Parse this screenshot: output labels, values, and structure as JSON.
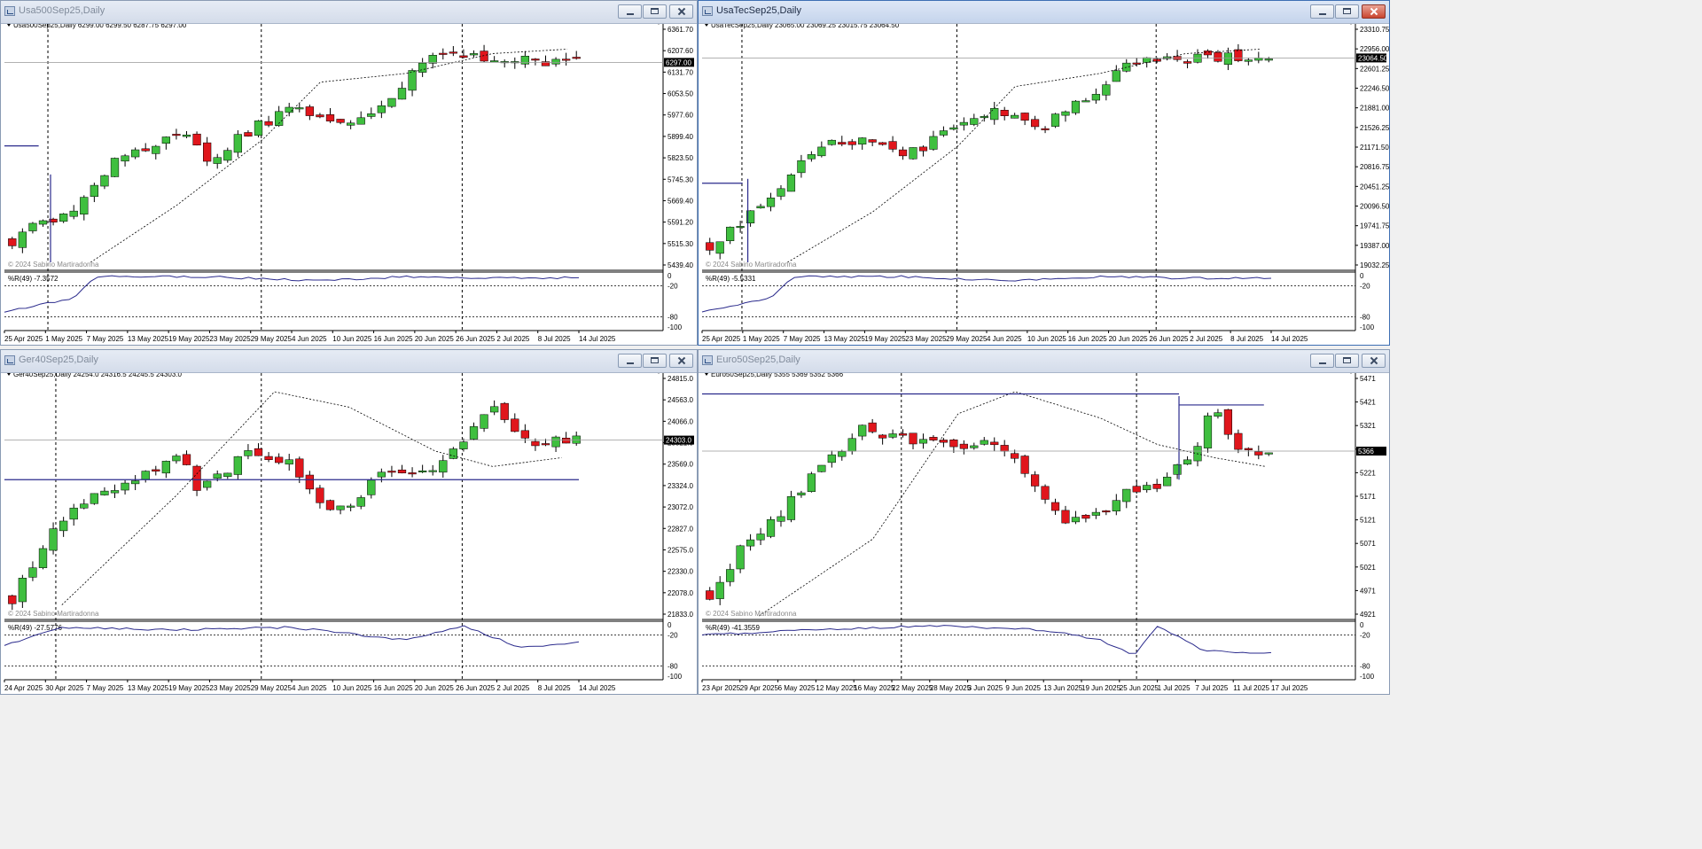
{
  "colors": {
    "bull": "#3fbf3f",
    "bear": "#e0161c",
    "wick": "#000000",
    "level": "#2a2a8c",
    "wpr": "#2a2a8c",
    "grid": "#000000",
    "tagBg": "#000000",
    "tagFg": "#ffffff"
  },
  "icons": {
    "window": "chart-window-icon",
    "min": "minimize-icon",
    "max": "maximize-icon",
    "close": "close-icon",
    "arrow": "dropdown-triangle-icon"
  },
  "watermark": "© 2024 Sabino Martiradonna",
  "windows": [
    {
      "title": "Usa500Sep25,Daily",
      "header": "Usa500Sep25,Daily  6299.00 6299.50 6287.75 6297.00",
      "price": "6297.00",
      "price_ticks": [
        "6361.70",
        "6207.60",
        "6131.70",
        "6053.50",
        "5977.60",
        "5899.40",
        "5823.50",
        "5745.30",
        "5669.40",
        "5591.20",
        "5515.30",
        "5439.40"
      ],
      "wpr_label": "%R(49) -7.3572",
      "wpr_ticks": [
        "0",
        "-20",
        "-80",
        "-100"
      ],
      "dates": [
        "25 Apr 2025",
        "1 May 2025",
        "7 May 2025",
        "13 May 2025",
        "19 May 2025",
        "23 May 2025",
        "29 May 2025",
        "4 Jun 2025",
        "10 Jun 2025",
        "16 Jun 2025",
        "20 Jun 2025",
        "26 Jun 2025",
        "2 Jul 2025",
        "8 Jul 2025",
        "14 Jul 2025"
      ]
    },
    {
      "title": "UsaTecSep25,Daily",
      "header": "UsaTecSep25,Daily  23065.00 23069.25 23015.75 23064.50",
      "price": "23064.50",
      "price_ticks": [
        "23310.75",
        "22956.00",
        "22601.25",
        "22246.50",
        "21881.00",
        "21526.25",
        "21171.50",
        "20816.75",
        "20451.25",
        "20096.50",
        "19741.75",
        "19387.00",
        "19032.25"
      ],
      "wpr_label": "%R(49) -5.5331",
      "wpr_ticks": [
        "0",
        "-20",
        "-80",
        "-100"
      ],
      "dates": [
        "25 Apr 2025",
        "1 May 2025",
        "7 May 2025",
        "13 May 2025",
        "19 May 2025",
        "23 May 2025",
        "29 May 2025",
        "4 Jun 2025",
        "10 Jun 2025",
        "16 Jun 2025",
        "20 Jun 2025",
        "26 Jun 2025",
        "2 Jul 2025",
        "8 Jul 2025",
        "14 Jul 2025"
      ]
    },
    {
      "title": "Ger40Sep25,Daily",
      "header": "Ger40Sep25,Daily  24254.0 24316.5 24245.5 24303.0",
      "price": "24303.0",
      "price_ticks": [
        "24815.0",
        "24563.0",
        "24066.0",
        "23821.0",
        "23569.0",
        "23324.0",
        "23072.0",
        "22827.0",
        "22575.0",
        "22330.0",
        "22078.0",
        "21833.0"
      ],
      "wpr_label": "%R(49) -27.5776",
      "wpr_ticks": [
        "0",
        "-20",
        "-80",
        "-100"
      ],
      "dates": [
        "24 Apr 2025",
        "30 Apr 2025",
        "7 May 2025",
        "13 May 2025",
        "19 May 2025",
        "23 May 2025",
        "29 May 2025",
        "4 Jun 2025",
        "10 Jun 2025",
        "16 Jun 2025",
        "20 Jun 2025",
        "26 Jun 2025",
        "2 Jul 2025",
        "8 Jul 2025",
        "14 Jul 2025"
      ]
    },
    {
      "title": "Euro50Sep25,Daily",
      "header": "Euro50Sep25,Daily  5355 5369 5352 5366",
      "price": "5366",
      "price_ticks": [
        "5471",
        "5421",
        "5321",
        "5271",
        "5221",
        "5171",
        "5121",
        "5071",
        "5021",
        "4971",
        "4921"
      ],
      "wpr_label": "%R(49) -41.3559",
      "wpr_ticks": [
        "0",
        "-20",
        "-80",
        "-100"
      ],
      "dates": [
        "23 Apr 2025",
        "29 Apr 2025",
        "6 May 2025",
        "12 May 2025",
        "16 May 2025",
        "22 May 2025",
        "28 May 2025",
        "3 Jun 2025",
        "9 Jun 2025",
        "13 Jun 2025",
        "19 Jun 2025",
        "25 Jun 2025",
        "1 Jul 2025",
        "7 Jul 2025",
        "11 Jul 2025",
        "17 Jul 2025"
      ]
    }
  ]
}
